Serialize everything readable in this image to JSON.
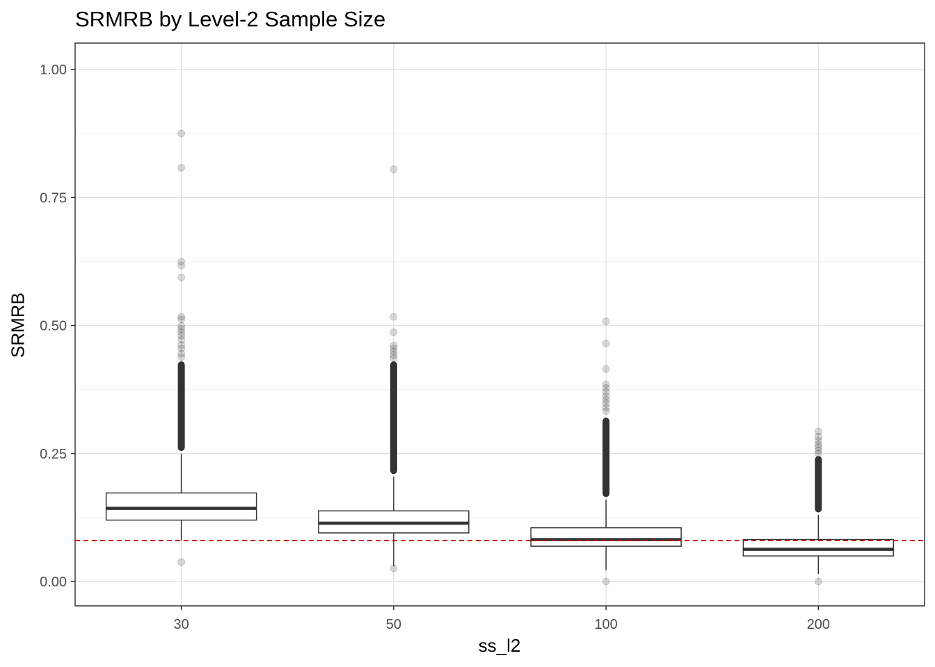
{
  "chart_data": {
    "type": "box",
    "title": "SRMRB by Level-2 Sample Size",
    "xlabel": "ss_l2",
    "ylabel": "SRMRB",
    "categories": [
      "30",
      "50",
      "100",
      "200"
    ],
    "ylim": [
      -0.048,
      1.05
    ],
    "yticks": [
      0.0,
      0.25,
      0.5,
      0.75,
      1.0
    ],
    "ytick_labels": [
      "0.00",
      "0.25",
      "0.50",
      "0.75",
      "1.00"
    ],
    "grid": true,
    "reference_line": {
      "y": 0.08,
      "style": "dashed",
      "color": "#cc0000"
    },
    "boxes": [
      {
        "category": "30",
        "whisker_low": 0.08,
        "q1": 0.12,
        "median": 0.143,
        "q3": 0.173,
        "whisker_high": 0.25,
        "outlier_high_range": [
          0.255,
          0.43
        ],
        "outliers": [
          0.038,
          0.875,
          0.808,
          0.625,
          0.617,
          0.594,
          0.517,
          0.512,
          0.499,
          0.493,
          0.487,
          0.48,
          0.472,
          0.462,
          0.455,
          0.445,
          0.438
        ]
      },
      {
        "category": "50",
        "whisker_low": 0.03,
        "q1": 0.095,
        "median": 0.114,
        "q3": 0.138,
        "whisker_high": 0.205,
        "outlier_high_range": [
          0.21,
          0.43
        ],
        "outliers": [
          0.026,
          0.805,
          0.517,
          0.487,
          0.461,
          0.455,
          0.449,
          0.442,
          0.436
        ]
      },
      {
        "category": "100",
        "whisker_low": 0.022,
        "q1": 0.069,
        "median": 0.082,
        "q3": 0.105,
        "whisker_high": 0.16,
        "outlier_high_range": [
          0.165,
          0.32
        ],
        "outliers": [
          0.0,
          0.508,
          0.465,
          0.415,
          0.385,
          0.378,
          0.37,
          0.362,
          0.355,
          0.348,
          0.34,
          0.333
        ]
      },
      {
        "category": "200",
        "whisker_low": 0.015,
        "q1": 0.05,
        "median": 0.063,
        "q3": 0.082,
        "whisker_high": 0.13,
        "outlier_high_range": [
          0.135,
          0.245
        ],
        "outliers": [
          0.0,
          0.293,
          0.283,
          0.275,
          0.268,
          0.262,
          0.256,
          0.25
        ]
      }
    ]
  }
}
